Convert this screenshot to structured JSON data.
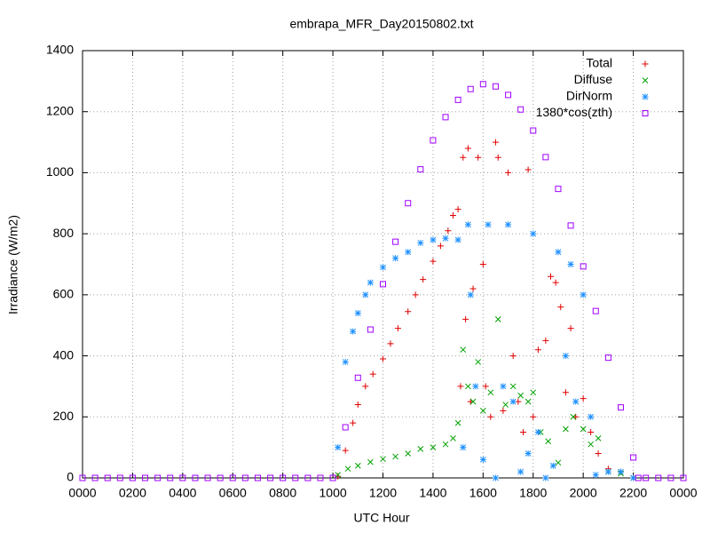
{
  "chart_data": {
    "type": "scatter",
    "title": "embrapa_MFR_Day20150802.txt",
    "x_label": "UTC Hour",
    "y_label": "Irradiance (W/m2)",
    "xlim": [
      0,
      24
    ],
    "ylim": [
      0,
      1400
    ],
    "xticks": [
      {
        "value": 0,
        "label": "0000"
      },
      {
        "value": 2,
        "label": "0200"
      },
      {
        "value": 4,
        "label": "0400"
      },
      {
        "value": 6,
        "label": "0600"
      },
      {
        "value": 8,
        "label": "0800"
      },
      {
        "value": 10,
        "label": "1000"
      },
      {
        "value": 12,
        "label": "1200"
      },
      {
        "value": 14,
        "label": "1400"
      },
      {
        "value": 16,
        "label": "1600"
      },
      {
        "value": 18,
        "label": "1800"
      },
      {
        "value": 20,
        "label": "2000"
      },
      {
        "value": 22,
        "label": "2200"
      },
      {
        "value": 24,
        "label": "0000"
      }
    ],
    "yticks": [
      0,
      200,
      400,
      600,
      800,
      1000,
      1200,
      1400
    ],
    "grid": true,
    "legend": "top-right",
    "series": [
      {
        "name": "Total",
        "color": "#e00000",
        "marker": "plus",
        "x": [
          10.2,
          10.5,
          10.8,
          11,
          11.3,
          11.6,
          12,
          12.3,
          12.6,
          13,
          13.3,
          13.6,
          14,
          14.3,
          14.6,
          14.8,
          15,
          15.1,
          15.2,
          15.3,
          15.4,
          15.5,
          15.6,
          15.8,
          16,
          16.1,
          16.3,
          16.5,
          16.6,
          16.8,
          17,
          17.2,
          17.4,
          17.6,
          17.8,
          18,
          18.2,
          18.5,
          18.7,
          18.9,
          19.1,
          19.3,
          19.5,
          19.7,
          20,
          20.3,
          20.6,
          21,
          21.5,
          22
        ],
        "values": [
          5,
          90,
          180,
          240,
          300,
          340,
          390,
          440,
          490,
          545,
          600,
          650,
          710,
          760,
          810,
          860,
          880,
          300,
          1050,
          520,
          1080,
          250,
          620,
          1050,
          700,
          300,
          200,
          1100,
          1050,
          220,
          1000,
          400,
          250,
          150,
          1010,
          200,
          420,
          450,
          660,
          640,
          560,
          280,
          490,
          200,
          260,
          150,
          80,
          30,
          20,
          0
        ]
      },
      {
        "name": "Diffuse",
        "color": "#00a000",
        "marker": "cross",
        "x": [
          10.2,
          10.6,
          11,
          11.5,
          12,
          12.5,
          13,
          13.5,
          14,
          14.5,
          14.8,
          15,
          15.2,
          15.4,
          15.6,
          15.8,
          16,
          16.3,
          16.6,
          16.9,
          17.2,
          17.5,
          17.8,
          18,
          18.3,
          18.6,
          19,
          19.3,
          19.6,
          20,
          20.3,
          20.6,
          21,
          21.5,
          22
        ],
        "values": [
          10,
          30,
          40,
          52,
          62,
          70,
          80,
          95,
          100,
          110,
          130,
          180,
          420,
          300,
          250,
          380,
          220,
          280,
          520,
          240,
          300,
          270,
          250,
          280,
          150,
          120,
          50,
          160,
          200,
          160,
          110,
          130,
          20,
          15,
          0
        ]
      },
      {
        "name": "DirNorm",
        "color": "#1e90ff",
        "marker": "star",
        "x": [
          10.2,
          10.5,
          10.8,
          11,
          11.3,
          11.5,
          12,
          12.5,
          13,
          13.5,
          14,
          14.5,
          15,
          15.2,
          15.4,
          15.5,
          15.7,
          16,
          16.2,
          16.5,
          16.8,
          17,
          17.2,
          17.5,
          17.8,
          18,
          18.2,
          18.5,
          18.8,
          19,
          19.3,
          19.5,
          19.7,
          20,
          20.3,
          20.5,
          21,
          21.5,
          22
        ],
        "values": [
          100,
          380,
          480,
          540,
          600,
          640,
          690,
          720,
          740,
          770,
          780,
          785,
          780,
          100,
          830,
          600,
          300,
          60,
          830,
          0,
          300,
          830,
          250,
          20,
          80,
          800,
          150,
          0,
          40,
          740,
          400,
          700,
          250,
          600,
          200,
          10,
          20,
          20,
          0
        ]
      },
      {
        "name": "1380*cos(zth)",
        "color": "#a000ff",
        "marker": "square",
        "x": [
          0,
          0.5,
          1,
          1.5,
          2,
          2.5,
          3,
          3.5,
          4,
          4.5,
          5,
          5.5,
          6,
          6.5,
          7,
          7.5,
          8,
          8.5,
          9,
          9.5,
          10,
          10.5,
          11,
          11.5,
          12,
          12.5,
          13,
          13.5,
          14,
          14.5,
          15,
          15.5,
          16,
          16.5,
          17,
          17.5,
          18,
          18.5,
          19,
          19.5,
          20,
          20.5,
          21,
          21.5,
          22,
          22.2,
          22.5,
          23,
          23.5,
          24
        ],
        "values": [
          0,
          0,
          0,
          0,
          0,
          0,
          0,
          0,
          0,
          0,
          0,
          0,
          0,
          0,
          0,
          0,
          0,
          0,
          0,
          0,
          0,
          166,
          328,
          486,
          635,
          774,
          900,
          1011,
          1106,
          1182,
          1239,
          1274,
          1290,
          1283,
          1255,
          1207,
          1138,
          1051,
          947,
          827,
          693,
          547,
          394,
          231,
          67,
          0,
          0,
          0,
          0,
          0
        ]
      }
    ]
  }
}
